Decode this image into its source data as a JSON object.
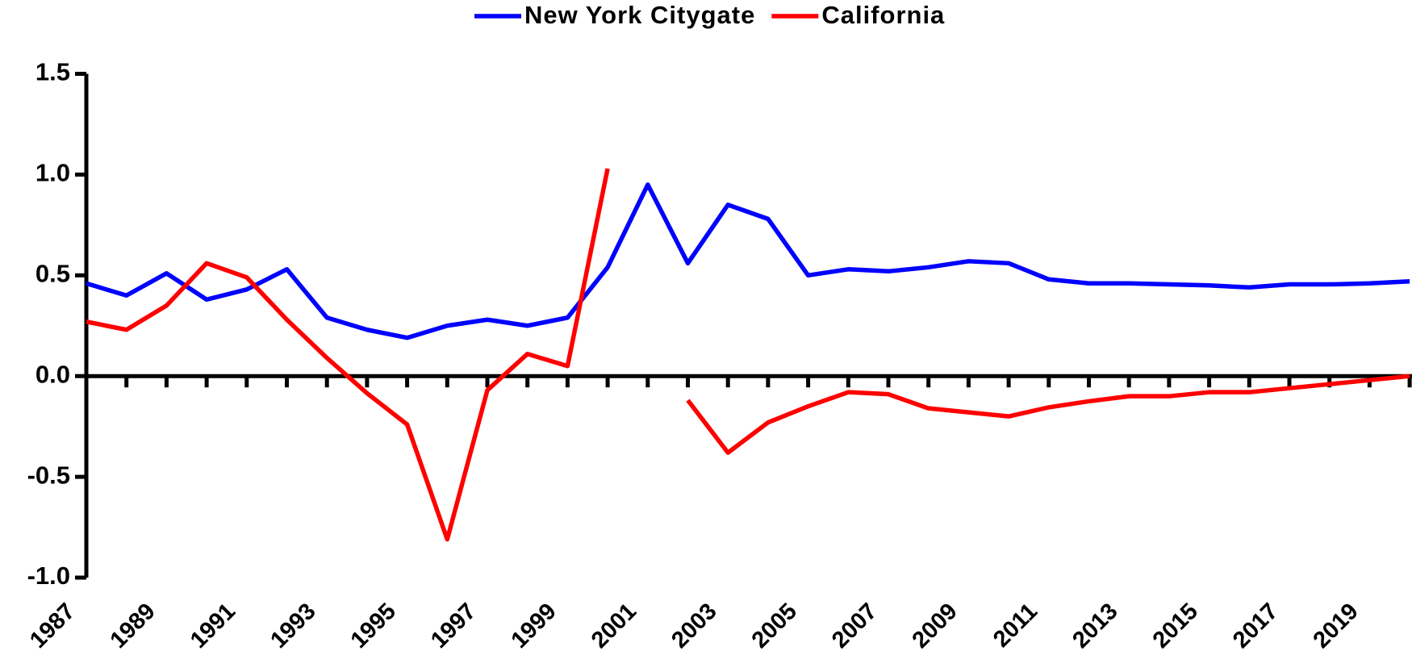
{
  "chart_data": {
    "type": "line",
    "categories": [
      "1987",
      null,
      "1989",
      null,
      "1991",
      null,
      "1993",
      null,
      "1995",
      null,
      "1997",
      null,
      "1999",
      null,
      "2001",
      null,
      "2003",
      null,
      "2005",
      null,
      "2007",
      null,
      "2009",
      null,
      "2011",
      null,
      "2013",
      null,
      "2015",
      null,
      "2017",
      null,
      "2019",
      null
    ],
    "series": [
      {
        "name": "New York Citygate",
        "color": "#0000ff",
        "values": [
          0.46,
          0.4,
          0.51,
          0.38,
          0.43,
          0.53,
          0.29,
          0.23,
          0.19,
          0.25,
          0.28,
          0.25,
          0.29,
          0.54,
          0.95,
          0.56,
          0.85,
          0.78,
          0.5,
          0.53,
          0.52,
          0.54,
          0.57,
          0.56,
          0.48,
          0.46,
          0.46,
          0.455,
          0.45,
          0.44,
          0.455,
          0.455,
          0.46,
          0.47
        ]
      },
      {
        "name": "California",
        "color": "#ff0000",
        "values": [
          0.27,
          0.23,
          0.35,
          0.56,
          0.49,
          0.28,
          0.09,
          -0.085,
          -0.24,
          -0.81,
          -0.07,
          0.11,
          0.05,
          1.03,
          null,
          -0.12,
          -0.38,
          -0.23,
          -0.15,
          -0.08,
          -0.09,
          -0.16,
          -0.18,
          -0.2,
          -0.155,
          -0.125,
          -0.1,
          -0.1,
          -0.08,
          -0.08,
          -0.06,
          -0.04,
          -0.02,
          0.0
        ]
      }
    ],
    "ylim": [
      -1.0,
      1.5
    ],
    "yticks": [
      {
        "value": -1.0,
        "label": "-1.0"
      },
      -0.5,
      {
        "value": 0.0,
        "label": "0.0"
      },
      0.5,
      {
        "value": 1.0,
        "label": "1.0"
      },
      1.5
    ],
    "legend": "top"
  }
}
